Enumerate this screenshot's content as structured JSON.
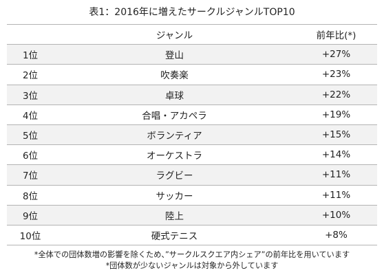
{
  "title": "表1：2016年に増えたサークルジャンルTOP10",
  "table": {
    "headers": {
      "rank": "",
      "genre": "ジャンル",
      "change": "前年比(*)"
    },
    "rows": [
      {
        "rank": "1位",
        "genre": "登山",
        "change": "+27%"
      },
      {
        "rank": "2位",
        "genre": "吹奏楽",
        "change": "+23%"
      },
      {
        "rank": "3位",
        "genre": "卓球",
        "change": "+22%"
      },
      {
        "rank": "4位",
        "genre": "合唱・アカペラ",
        "change": "+19%"
      },
      {
        "rank": "5位",
        "genre": "ボランティア",
        "change": "+15%"
      },
      {
        "rank": "6位",
        "genre": "オーケストラ",
        "change": "+14%"
      },
      {
        "rank": "7位",
        "genre": "ラグビー",
        "change": "+11%"
      },
      {
        "rank": "8位",
        "genre": "サッカー",
        "change": "+11%"
      },
      {
        "rank": "9位",
        "genre": "陸上",
        "change": "+10%"
      },
      {
        "rank": "10位",
        "genre": "硬式テニス",
        "change": "+8%"
      }
    ]
  },
  "notes": [
    "*全体での団体数増の影響を除くため、”サークルスクエア内シェア”の前年比を用いています",
    "*団体数が少ないジャンルは対象から外しています"
  ],
  "colors": {
    "stripe": "#f2f2f2",
    "rule": "#b3b3b3",
    "text": "#222222"
  }
}
